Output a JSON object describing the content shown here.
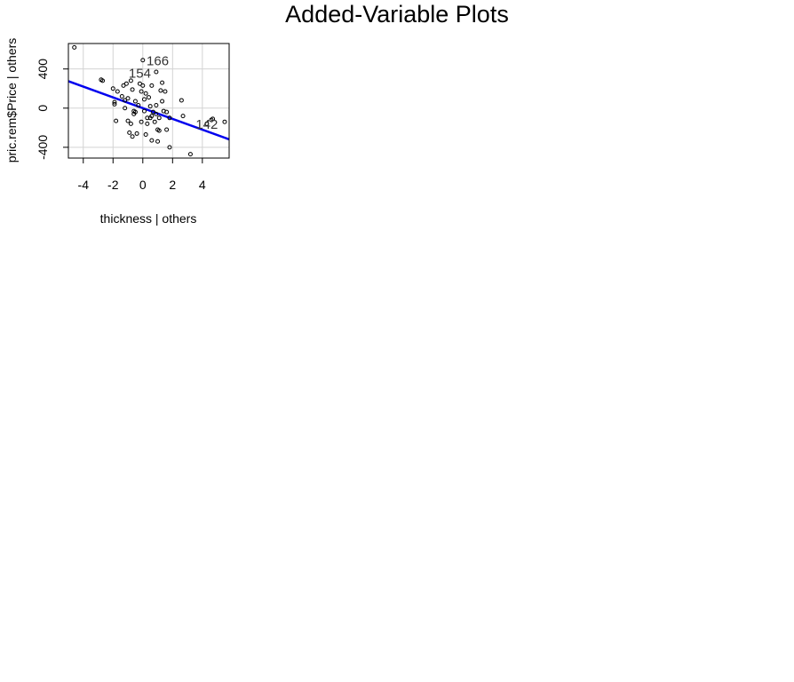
{
  "title": "Added-Variable Plots",
  "chart_data": {
    "type": "scatter",
    "title": "",
    "xlabel": "thickness | others",
    "ylabel": "pric.rem$Price  | others",
    "xlim": [
      -5,
      5.8
    ],
    "ylim": [
      -510,
      660
    ],
    "xticks": [
      -4,
      -2,
      0,
      2,
      4
    ],
    "yticks": [
      -400,
      0,
      400
    ],
    "xtick_labels": [
      "-4",
      "-2",
      "0",
      "2",
      "4"
    ],
    "ytick_labels": [
      "-400",
      "0",
      "400"
    ],
    "grid": true,
    "legend": "none",
    "colors": {
      "points": "#000000",
      "fit_line": "#0000ee",
      "grid": "#d3d3d3",
      "axes": "#000000",
      "point_labels": "#333333"
    },
    "fit_line": {
      "intercept": 0,
      "slope": -55,
      "x_range": [
        -5,
        5.8
      ]
    },
    "points": [
      {
        "x": -4.6,
        "y": 620
      },
      {
        "x": -2.8,
        "y": 290
      },
      {
        "x": -2.7,
        "y": 280
      },
      {
        "x": -2.0,
        "y": 200
      },
      {
        "x": -1.9,
        "y": 60
      },
      {
        "x": -1.9,
        "y": 40
      },
      {
        "x": -1.7,
        "y": 170
      },
      {
        "x": -1.8,
        "y": -130
      },
      {
        "x": -1.4,
        "y": 120
      },
      {
        "x": -1.3,
        "y": 230
      },
      {
        "x": -1.2,
        "y": 80
      },
      {
        "x": -1.2,
        "y": 0
      },
      {
        "x": -1.0,
        "y": 100
      },
      {
        "x": -1.1,
        "y": 250
      },
      {
        "x": -1.0,
        "y": -130
      },
      {
        "x": -0.9,
        "y": -250
      },
      {
        "x": -0.8,
        "y": -160
      },
      {
        "x": -0.8,
        "y": 280
      },
      {
        "x": -0.7,
        "y": 190
      },
      {
        "x": -0.6,
        "y": -60
      },
      {
        "x": -0.6,
        "y": -30
      },
      {
        "x": -0.7,
        "y": -290
      },
      {
        "x": -0.5,
        "y": -40
      },
      {
        "x": -0.5,
        "y": 70
      },
      {
        "x": -0.4,
        "y": -260
      },
      {
        "x": -0.3,
        "y": 30
      },
      {
        "x": -0.2,
        "y": 250
      },
      {
        "x": -0.1,
        "y": 170
      },
      {
        "x": -0.1,
        "y": -140
      },
      {
        "x": 0.0,
        "y": 490
      },
      {
        "x": 0.0,
        "y": 230
      },
      {
        "x": 0.1,
        "y": 90
      },
      {
        "x": 0.1,
        "y": -30
      },
      {
        "x": 0.2,
        "y": -270
      },
      {
        "x": 0.2,
        "y": 150
      },
      {
        "x": 0.3,
        "y": -100
      },
      {
        "x": 0.3,
        "y": -160
      },
      {
        "x": 0.4,
        "y": 110
      },
      {
        "x": 0.5,
        "y": -100
      },
      {
        "x": 0.5,
        "y": 20
      },
      {
        "x": 0.6,
        "y": -80
      },
      {
        "x": 0.6,
        "y": 230
      },
      {
        "x": 0.6,
        "y": -330
      },
      {
        "x": 0.7,
        "y": -40
      },
      {
        "x": 0.8,
        "y": -140
      },
      {
        "x": 0.9,
        "y": 30
      },
      {
        "x": 0.9,
        "y": 370
      },
      {
        "x": 0.9,
        "y": -60
      },
      {
        "x": 1.0,
        "y": -220
      },
      {
        "x": 1.0,
        "y": -340
      },
      {
        "x": 1.1,
        "y": -100
      },
      {
        "x": 1.1,
        "y": -230
      },
      {
        "x": 1.2,
        "y": 180
      },
      {
        "x": 1.3,
        "y": 260
      },
      {
        "x": 1.3,
        "y": 70
      },
      {
        "x": 1.4,
        "y": -30
      },
      {
        "x": 1.5,
        "y": 170
      },
      {
        "x": 1.6,
        "y": -40
      },
      {
        "x": 1.6,
        "y": -220
      },
      {
        "x": 1.8,
        "y": -400
      },
      {
        "x": 1.8,
        "y": -100
      },
      {
        "x": 2.6,
        "y": 80
      },
      {
        "x": 2.7,
        "y": -80
      },
      {
        "x": 3.2,
        "y": -470
      },
      {
        "x": 4.3,
        "y": -160
      },
      {
        "x": 4.6,
        "y": -120
      },
      {
        "x": 4.7,
        "y": -110
      },
      {
        "x": 5.5,
        "y": -140
      }
    ],
    "point_labels": [
      {
        "label": "166",
        "x": 1.0,
        "y": 485
      },
      {
        "label": "154",
        "x": -0.2,
        "y": 355
      },
      {
        "label": "142",
        "x": 4.3,
        "y": -165
      }
    ]
  }
}
